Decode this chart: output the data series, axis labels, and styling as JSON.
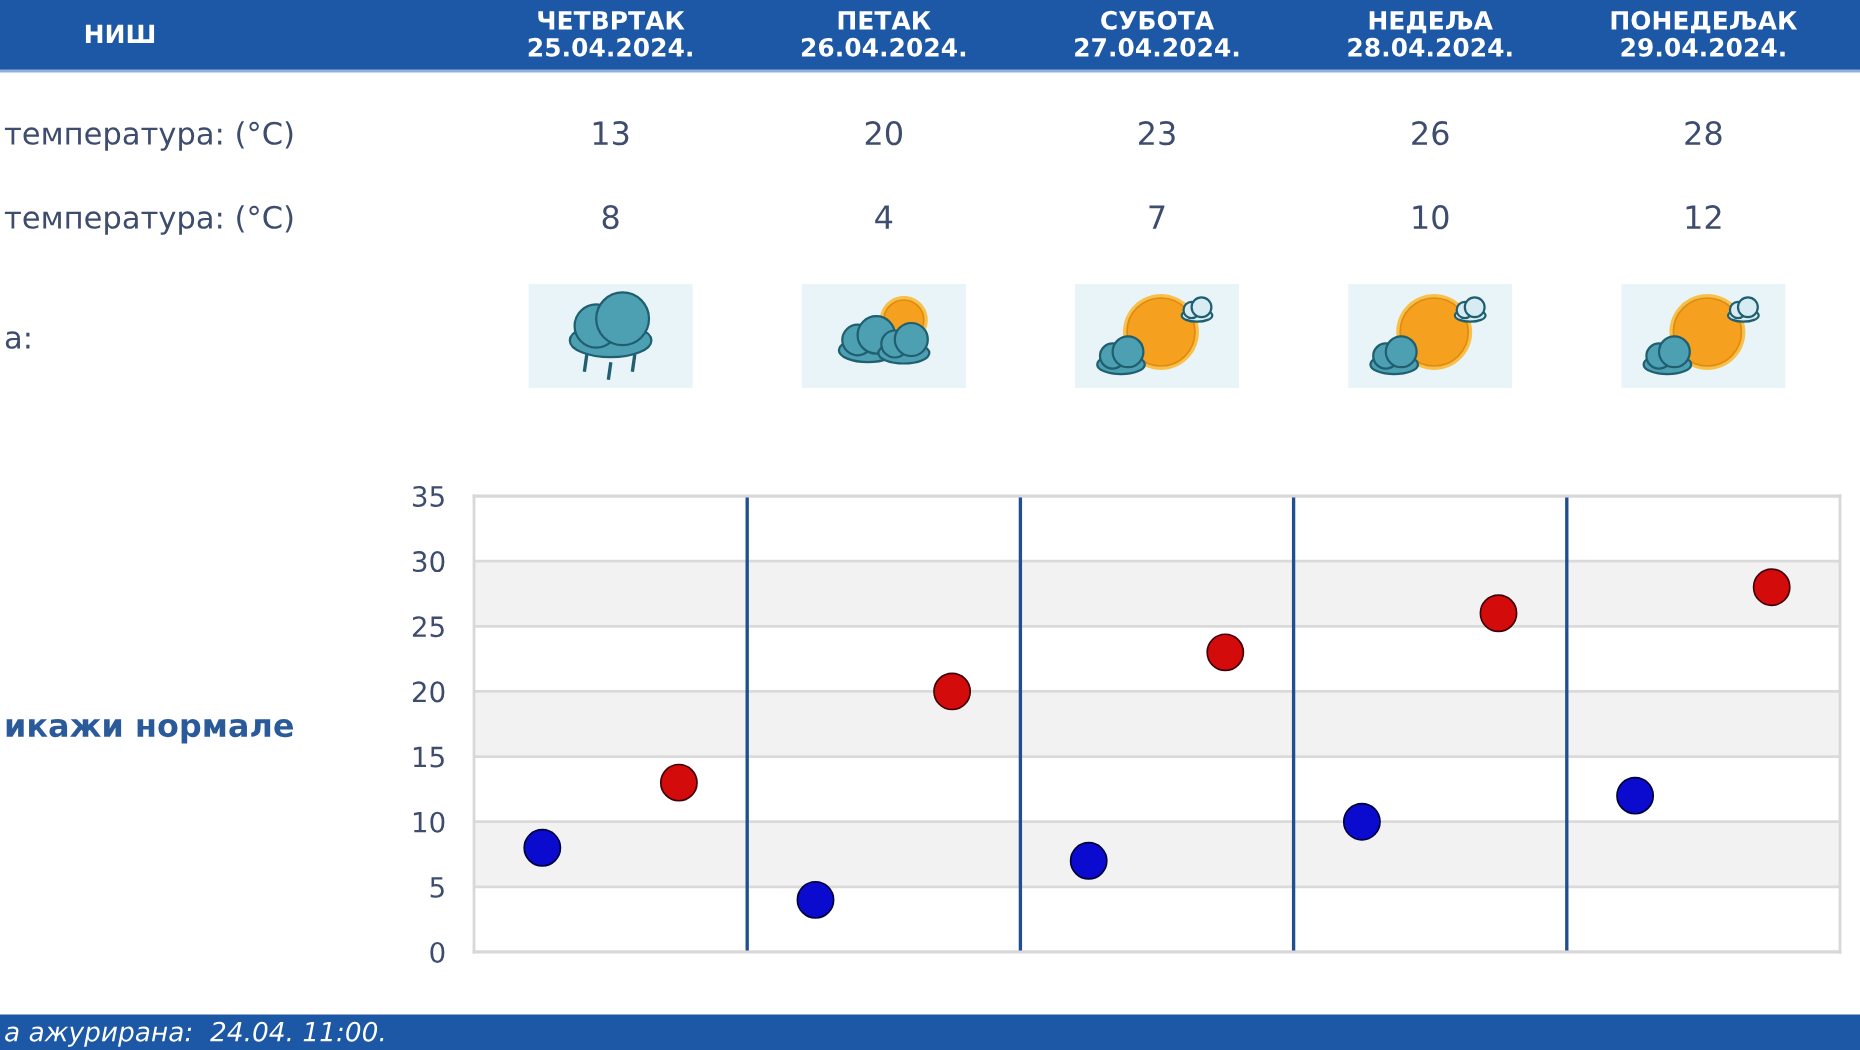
{
  "chart_data": {
    "type": "scatter",
    "title": "НИШ",
    "categories": [
      null,
      null,
      null,
      null,
      null
    ],
    "series": [
      {
        "color": "#0b0bd0",
        "values": [
          8,
          4,
          7,
          10,
          12
        ]
      },
      {
        "color": "#d40b0b",
        "values": [
          13,
          20,
          23,
          26,
          28
        ]
      }
    ],
    "ylim": [
      0,
      35
    ],
    "yticks": [
      0,
      5,
      10,
      15,
      20,
      25,
      30,
      35
    ],
    "grid": true,
    "marker": "circle",
    "data_labels": true,
    "tick_labels": "y",
    "bands": [
      {
        "axis": "y",
        "from": 5,
        "to": 10,
        "color": "#f2f2f2"
      },
      {
        "axis": "y",
        "from": 15,
        "to": 20,
        "color": "#f2f2f2"
      },
      {
        "axis": "y",
        "from": 25,
        "to": 30,
        "color": "#f2f2f2"
      }
    ],
    "annotations": [
      "ЧЕТВРТАК\n25.04.2024.",
      "ПЕТАК\n26.04.2024.",
      "СУБОТА\n27.04.2024.",
      "НЕДЕЉА\n28.04.2024.",
      "ПОНЕДЕЉАК\n29.04.2024.",
      "температура: (°C)",
      "температура: (°C)",
      "а:",
      "икажи нормале",
      "а ажурирана:  24.04. 11:00."
    ]
  }
}
